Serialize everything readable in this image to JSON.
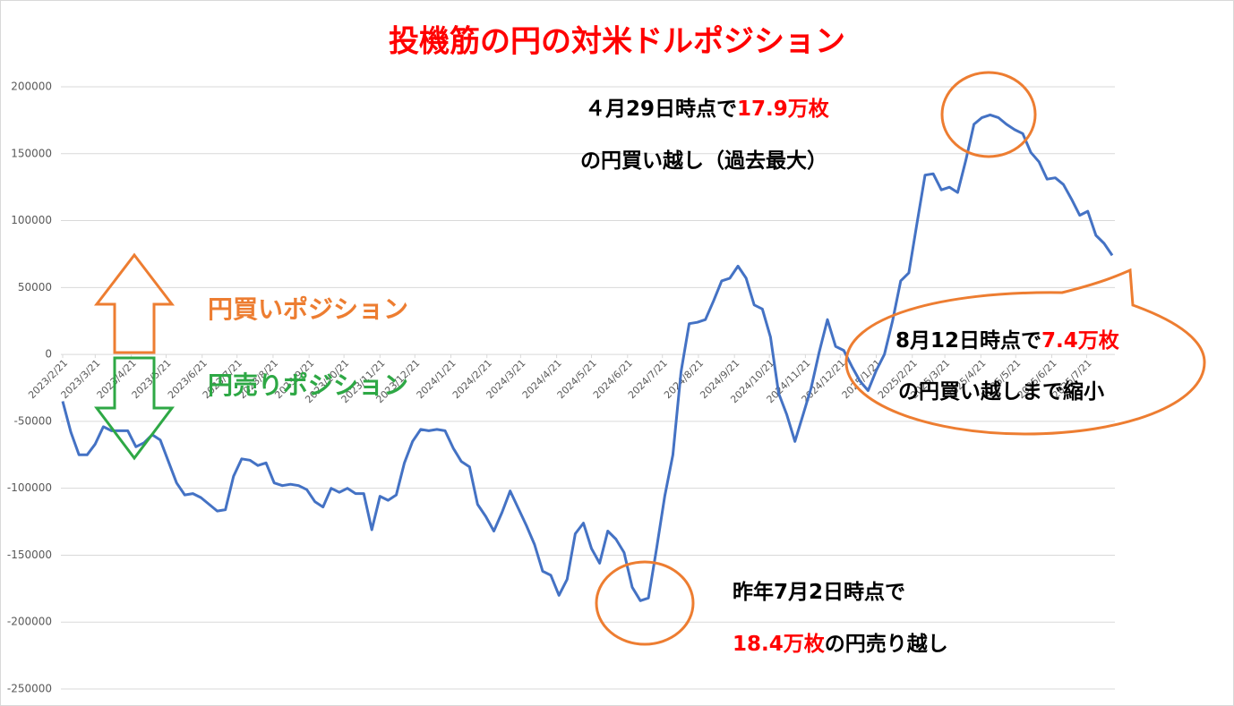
{
  "chart_data": {
    "type": "line",
    "title": "投機筋の円の対米ドルポジション",
    "title_color": "#ff0000",
    "x": [
      "2023/2/21",
      "2023/2/28",
      "2023/3/7",
      "2023/3/14",
      "2023/3/21",
      "2023/3/28",
      "2023/4/4",
      "2023/4/11",
      "2023/4/18",
      "2023/4/25",
      "2023/5/2",
      "2023/5/9",
      "2023/5/16",
      "2023/5/23",
      "2023/5/30",
      "2023/6/6",
      "2023/6/13",
      "2023/6/20",
      "2023/6/27",
      "2023/7/4",
      "2023/7/11",
      "2023/7/18",
      "2023/7/25",
      "2023/8/1",
      "2023/8/8",
      "2023/8/15",
      "2023/8/22",
      "2023/8/29",
      "2023/9/5",
      "2023/9/12",
      "2023/9/19",
      "2023/9/26",
      "2023/10/3",
      "2023/10/10",
      "2023/10/17",
      "2023/10/24",
      "2023/10/31",
      "2023/11/7",
      "2023/11/14",
      "2023/11/21",
      "2023/11/28",
      "2023/12/5",
      "2023/12/12",
      "2023/12/19",
      "2023/12/26",
      "2024/1/2",
      "2024/1/9",
      "2024/1/16",
      "2024/1/23",
      "2024/1/30",
      "2024/2/6",
      "2024/2/13",
      "2024/2/20",
      "2024/2/27",
      "2024/3/5",
      "2024/3/12",
      "2024/3/19",
      "2024/3/26",
      "2024/4/2",
      "2024/4/9",
      "2024/4/16",
      "2024/4/23",
      "2024/4/30",
      "2024/5/7",
      "2024/5/14",
      "2024/5/21",
      "2024/5/28",
      "2024/6/4",
      "2024/6/11",
      "2024/6/18",
      "2024/6/25",
      "2024/7/2",
      "2024/7/9",
      "2024/7/16",
      "2024/7/23",
      "2024/7/30",
      "2024/8/6",
      "2024/8/13",
      "2024/8/20",
      "2024/8/27",
      "2024/9/3",
      "2024/9/10",
      "2024/9/17",
      "2024/9/24",
      "2024/10/1",
      "2024/10/8",
      "2024/10/15",
      "2024/10/22",
      "2024/10/29",
      "2024/11/5",
      "2024/11/12",
      "2024/11/19",
      "2024/11/26",
      "2024/12/3",
      "2024/12/10",
      "2024/12/17",
      "2024/12/24",
      "2024/12/31",
      "2025/1/7",
      "2025/1/14",
      "2025/1/21",
      "2025/1/28",
      "2025/2/4",
      "2025/2/11",
      "2025/2/18",
      "2025/2/25",
      "2025/3/4",
      "2025/3/11",
      "2025/3/18",
      "2025/3/25",
      "2025/4/1",
      "2025/4/8",
      "2025/4/15",
      "2025/4/22",
      "2025/4/29",
      "2025/5/6",
      "2025/5/13",
      "2025/5/20",
      "2025/5/27",
      "2025/6/3",
      "2025/6/10",
      "2025/6/17",
      "2025/6/24",
      "2025/7/1",
      "2025/7/8",
      "2025/7/15",
      "2025/7/22",
      "2025/7/29",
      "2025/8/5",
      "2025/8/12"
    ],
    "series": [
      {
        "color": "#4472c4",
        "values": [
          -35000,
          -58000,
          -75000,
          -75000,
          -67000,
          -54000,
          -57000,
          -57000,
          -57000,
          -69000,
          -66000,
          -60000,
          -64000,
          -80000,
          -96000,
          -105000,
          -104000,
          -107000,
          -112000,
          -117000,
          -116000,
          -91000,
          -78000,
          -79000,
          -83000,
          -81000,
          -96000,
          -98000,
          -97000,
          -98000,
          -101000,
          -110000,
          -114000,
          -100000,
          -103000,
          -100000,
          -104000,
          -104000,
          -131000,
          -106000,
          -109000,
          -105000,
          -81000,
          -65000,
          -56000,
          -57000,
          -56000,
          -57000,
          -70000,
          -80000,
          -84000,
          -112000,
          -121000,
          -132000,
          -118000,
          -102000,
          -115000,
          -128000,
          -142000,
          -162000,
          -165000,
          -180000,
          -168000,
          -134000,
          -126000,
          -145000,
          -156000,
          -132000,
          -138000,
          -148000,
          -174000,
          -184000,
          -182000,
          -145000,
          -106000,
          -75000,
          -13000,
          23000,
          24000,
          26000,
          40000,
          55000,
          57000,
          66000,
          57000,
          37000,
          34000,
          13000,
          -29000,
          -45000,
          -65000,
          -45000,
          -25000,
          2000,
          26000,
          6000,
          3000,
          -9000,
          -20000,
          -27000,
          -12000,
          0,
          25000,
          55000,
          61000,
          98000,
          134000,
          135000,
          123000,
          125000,
          121000,
          145000,
          172000,
          177000,
          179000,
          177000,
          172000,
          168000,
          165000,
          151000,
          144000,
          131000,
          132000,
          127000,
          116000,
          104000,
          107000,
          89000,
          83000,
          74000
        ]
      }
    ],
    "xlim": [
      "2023/2/21",
      "2025/8/12"
    ],
    "xticks": [
      "2023/2/21",
      "2023/3/21",
      "2023/4/21",
      "2023/5/21",
      "2023/6/21",
      "2023/7/21",
      "2023/8/21",
      "2023/9/21",
      "2023/10/21",
      "2023/11/21",
      "2023/12/21",
      "2024/1/21",
      "2024/2/21",
      "2024/3/21",
      "2024/4/21",
      "2024/5/21",
      "2024/6/21",
      "2024/7/21",
      "2024/8/21",
      "2024/9/21",
      "2024/10/21",
      "2024/11/21",
      "2024/12/21",
      "2025/1/21",
      "2025/2/21",
      "2025/3/21",
      "2025/4/21",
      "2025/5/21",
      "2025/6/21",
      "2025/7/21"
    ],
    "ylim": [
      -250000,
      200000
    ],
    "yticks": [
      -250000,
      -200000,
      -150000,
      -100000,
      -50000,
      0,
      50000,
      100000,
      150000,
      200000
    ],
    "grid": true,
    "labels": [
      {
        "text": "円買いポジション",
        "color": "#ed7d31"
      },
      {
        "text": "円売りポジション",
        "color": "#2ea845"
      }
    ],
    "annotations": [
      {
        "lines": [
          [
            {
              "text": "４月29日時点で"
            },
            {
              "text": "17.9万枚",
              "color": "#ff0000"
            }
          ],
          [
            {
              "text": "の円買い越し（過去最大）"
            }
          ]
        ]
      },
      {
        "lines": [
          [
            {
              "text": "8月12日時点で"
            },
            {
              "text": "7.4万枚",
              "color": "#ff0000"
            }
          ],
          [
            {
              "text": "の円買い越しまで縮小"
            }
          ]
        ]
      },
      {
        "lines": [
          [
            {
              "text": "昨年7月2日時点で"
            }
          ],
          [
            {
              "text": "18.4万枚",
              "color": "#ff0000"
            },
            {
              "text": "の円売り越し"
            }
          ]
        ]
      }
    ]
  }
}
